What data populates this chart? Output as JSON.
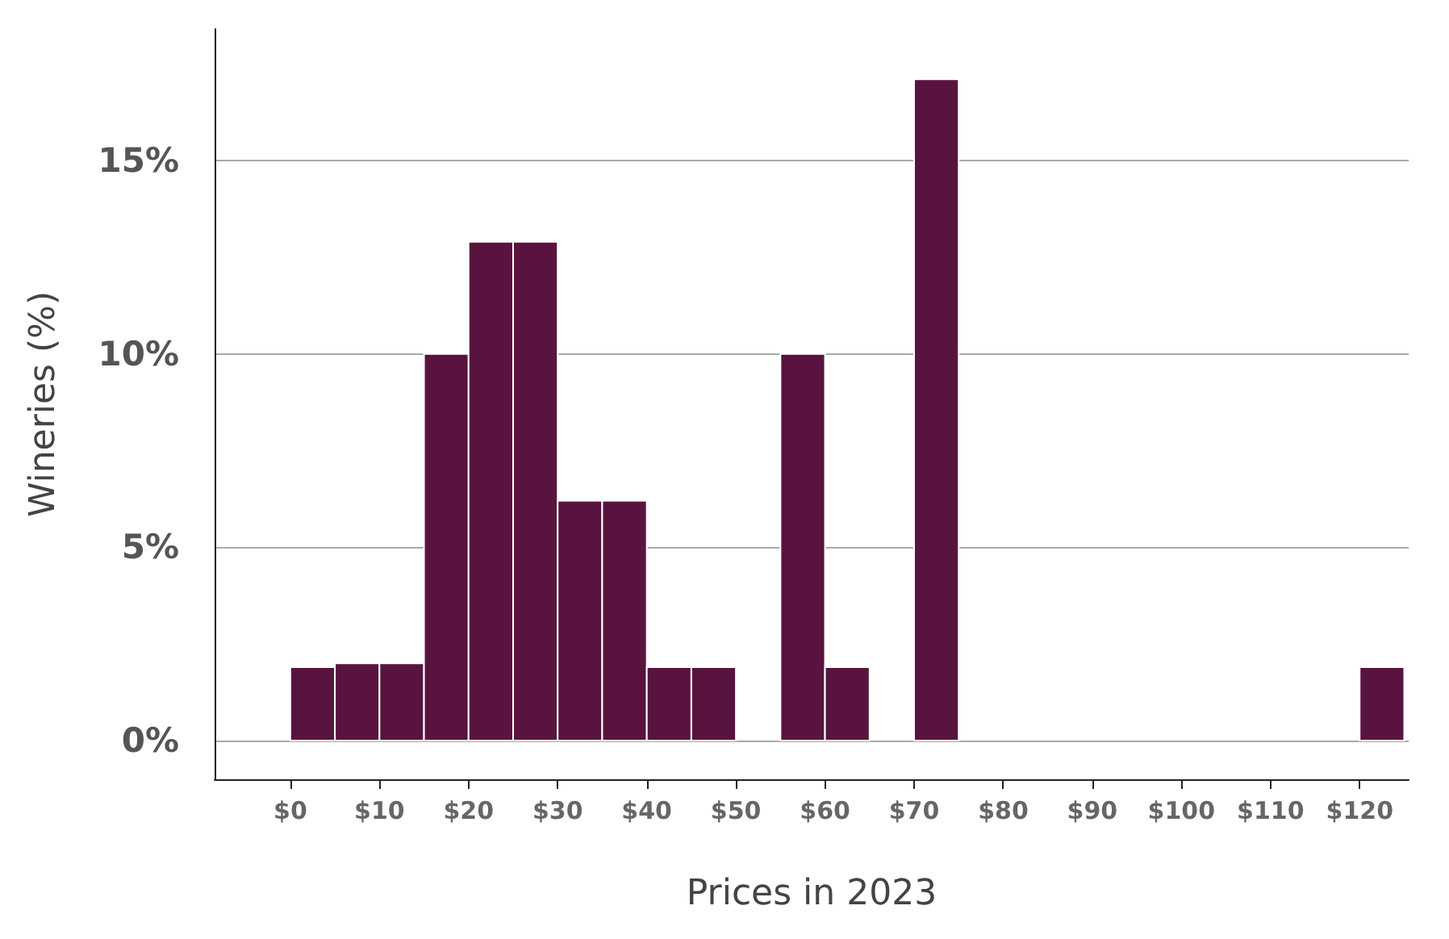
{
  "chart_data": {
    "type": "histogram",
    "xlabel": "Prices in 2023",
    "ylabel": "Wineries (%)",
    "bins": [
      0,
      5,
      10,
      15,
      20,
      25,
      30,
      35,
      40,
      45,
      50,
      55,
      60,
      65,
      70,
      75,
      80,
      85,
      90,
      95,
      100,
      105,
      110,
      115,
      120,
      125
    ],
    "values": [
      1.9,
      2,
      2,
      10,
      12.9,
      12.9,
      6.2,
      6.2,
      1.9,
      1.9,
      0,
      10,
      1.9,
      0,
      17.1,
      0,
      0,
      0,
      0,
      0,
      0,
      0,
      0,
      0,
      1.9
    ],
    "color": "#58143f",
    "xlim": [
      -8.5,
      125.5
    ],
    "xticks": [
      {
        "value": 0,
        "label": "$0"
      },
      {
        "value": 10,
        "label": "$10"
      },
      {
        "value": 20,
        "label": "$20"
      },
      {
        "value": 30,
        "label": "$30"
      },
      {
        "value": 40,
        "label": "$40"
      },
      {
        "value": 50,
        "label": "$50"
      },
      {
        "value": 60,
        "label": "$60"
      },
      {
        "value": 70,
        "label": "$70"
      },
      {
        "value": 80,
        "label": "$80"
      },
      {
        "value": 90,
        "label": "$90"
      },
      {
        "value": 100,
        "label": "$100"
      },
      {
        "value": 110,
        "label": "$110"
      },
      {
        "value": 120,
        "label": "$120"
      }
    ],
    "ylim": [
      -1,
      18.4
    ],
    "yticks": [
      {
        "value": 0,
        "label": "0%"
      },
      {
        "value": 5,
        "label": "5%"
      },
      {
        "value": 10,
        "label": "10%"
      },
      {
        "value": 15,
        "label": "15%"
      }
    ],
    "grid": "y"
  }
}
